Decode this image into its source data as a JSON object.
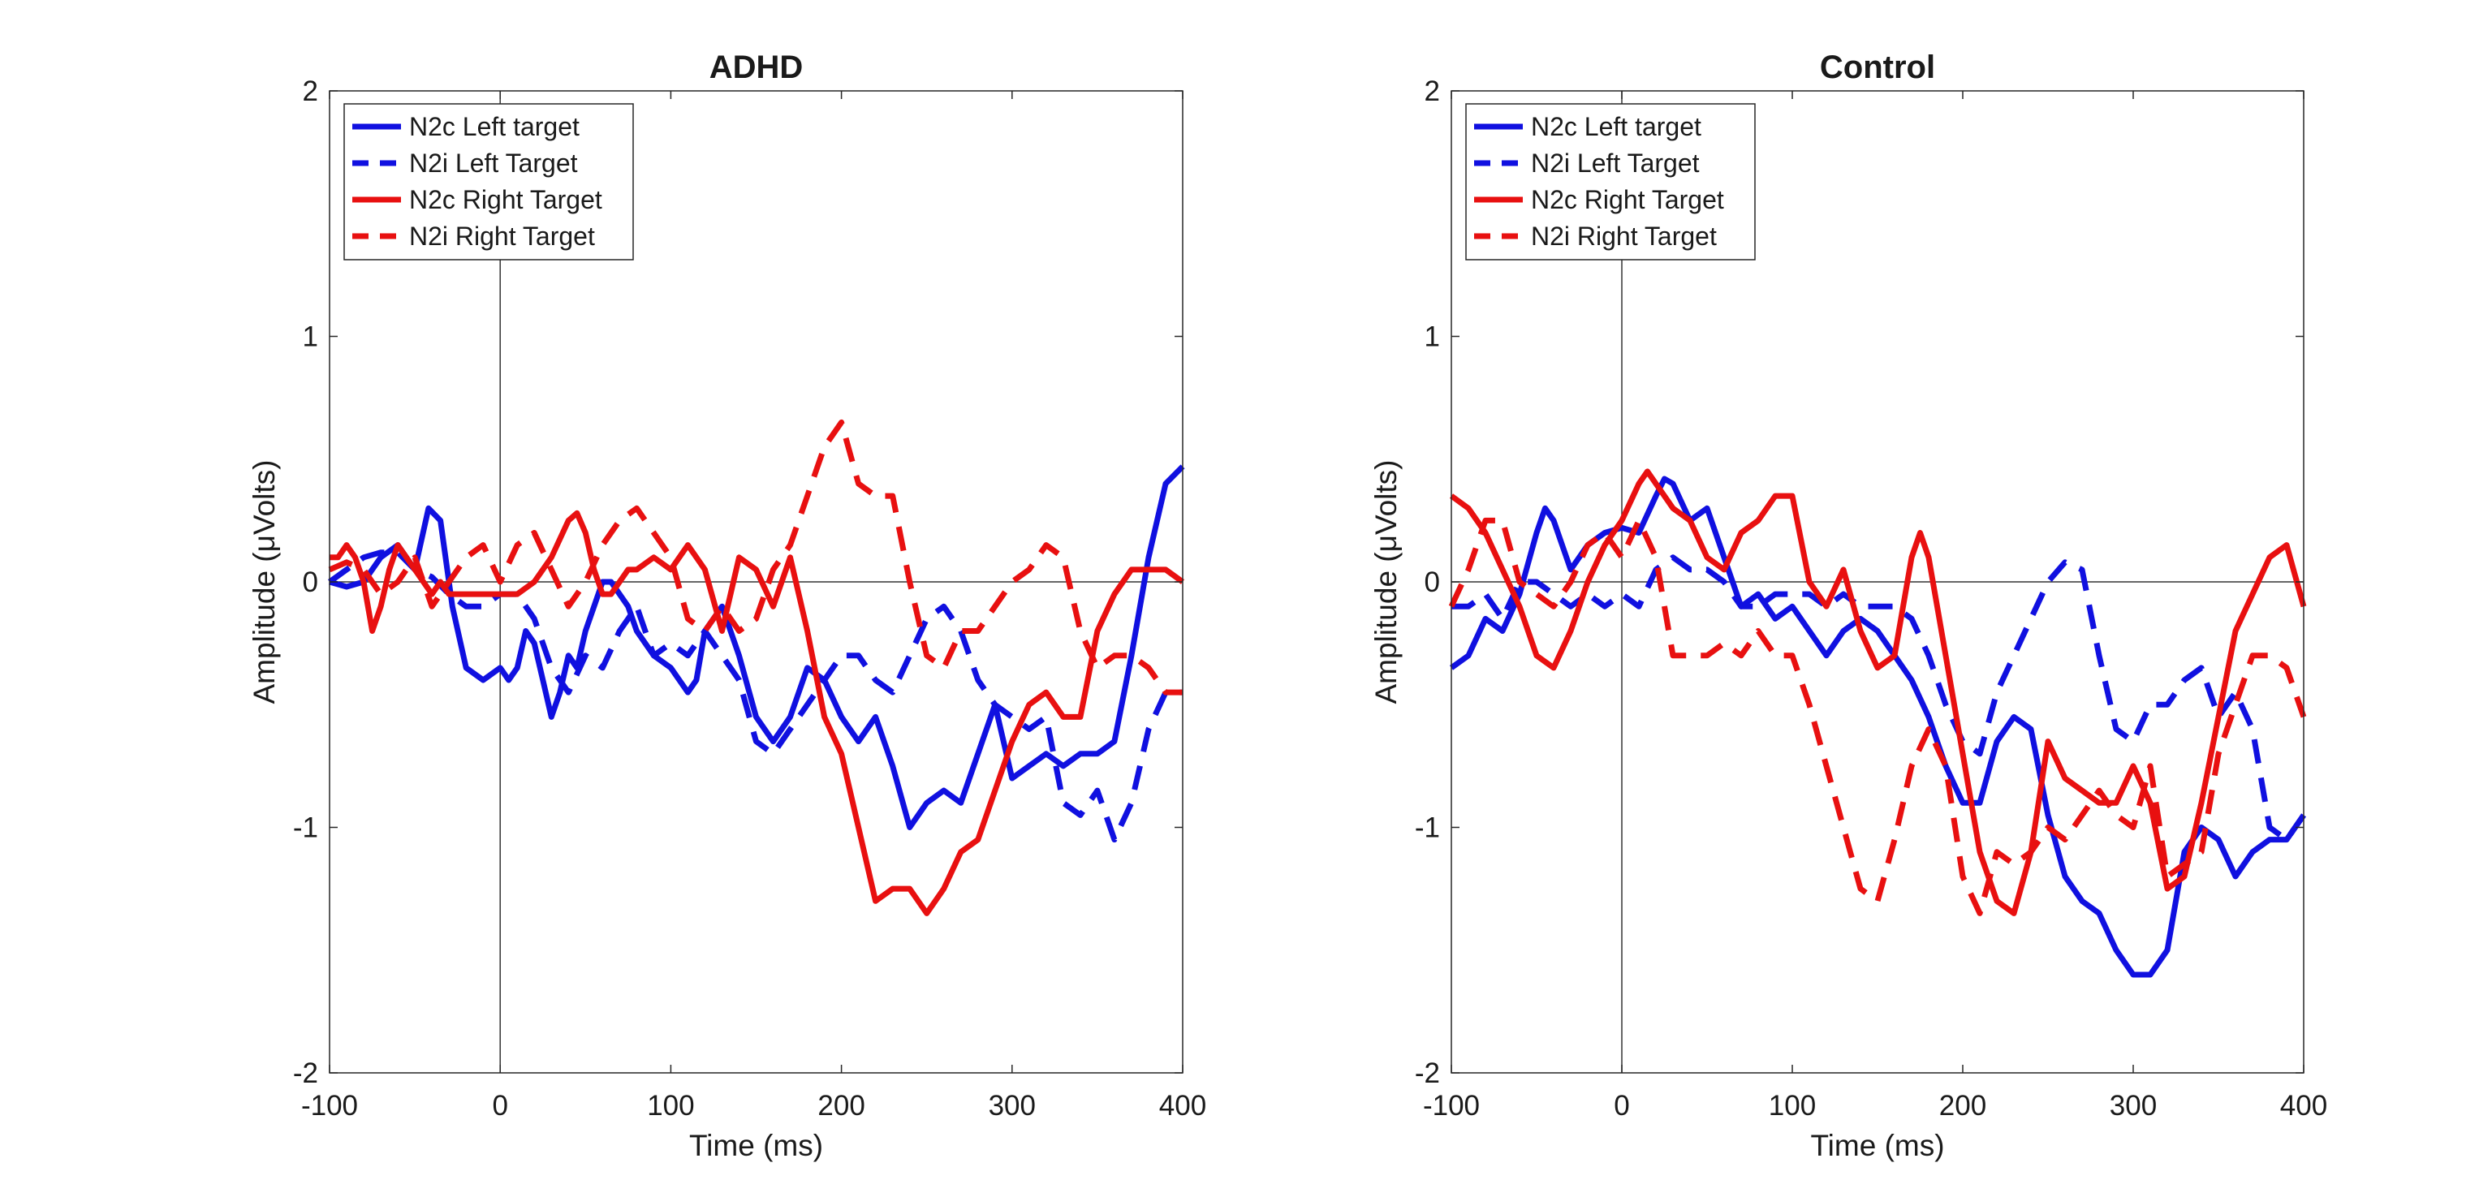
{
  "chart_data": [
    {
      "type": "line",
      "title": "ADHD",
      "xlabel": "Time (ms)",
      "ylabel": "Amplitude (μVolts)",
      "xlim": [
        -100,
        400
      ],
      "ylim": [
        -2,
        2
      ],
      "xticks": [
        -100,
        0,
        100,
        200,
        300,
        400
      ],
      "yticks": [
        -2,
        -1,
        0,
        1,
        2
      ],
      "xtick_labels": [
        "-100",
        "0",
        "100",
        "200",
        "300",
        "400"
      ],
      "ytick_labels": [
        "-2",
        "-1",
        "0",
        "1",
        "2"
      ],
      "grid": false,
      "zero_lines": true,
      "legend_position": "top-left",
      "series": [
        {
          "name": "N2c Left target",
          "color": "#1010e0",
          "dash": "solid",
          "x": [
            -100,
            -90,
            -80,
            -70,
            -60,
            -50,
            -42,
            -35,
            -28,
            -20,
            -10,
            0,
            5,
            10,
            15,
            20,
            25,
            30,
            35,
            40,
            45,
            50,
            55,
            60,
            65,
            70,
            75,
            80,
            90,
            100,
            110,
            115,
            120,
            130,
            140,
            150,
            160,
            170,
            180,
            190,
            200,
            210,
            220,
            230,
            240,
            250,
            260,
            270,
            280,
            290,
            300,
            310,
            320,
            330,
            340,
            350,
            360,
            370,
            380,
            390,
            400
          ],
          "y": [
            0,
            -0.02,
            0,
            0.1,
            0.15,
            0.05,
            0.3,
            0.25,
            -0.1,
            -0.35,
            -0.4,
            -0.35,
            -0.4,
            -0.35,
            -0.2,
            -0.25,
            -0.4,
            -0.55,
            -0.45,
            -0.3,
            -0.35,
            -0.2,
            -0.1,
            0,
            0,
            -0.05,
            -0.1,
            -0.2,
            -0.3,
            -0.35,
            -0.45,
            -0.4,
            -0.2,
            -0.1,
            -0.3,
            -0.55,
            -0.65,
            -0.55,
            -0.35,
            -0.4,
            -0.55,
            -0.65,
            -0.55,
            -0.75,
            -1.0,
            -0.9,
            -0.85,
            -0.9,
            -0.7,
            -0.5,
            -0.8,
            -0.75,
            -0.7,
            -0.75,
            -0.7,
            -0.7,
            -0.65,
            -0.3,
            0.1,
            0.4,
            0.47
          ]
        },
        {
          "name": "N2i Left Target",
          "color": "#1010e0",
          "dash": "dashed",
          "x": [
            -100,
            -90,
            -80,
            -70,
            -60,
            -50,
            -40,
            -30,
            -20,
            -10,
            0,
            10,
            20,
            30,
            40,
            50,
            60,
            70,
            80,
            90,
            100,
            110,
            120,
            130,
            140,
            150,
            160,
            170,
            180,
            190,
            200,
            210,
            220,
            230,
            240,
            250,
            260,
            270,
            280,
            290,
            300,
            310,
            320,
            330,
            340,
            350,
            360,
            370,
            380,
            390,
            400
          ],
          "y": [
            0,
            0.05,
            0.1,
            0.12,
            0.12,
            0.05,
            0.02,
            -0.05,
            -0.1,
            -0.1,
            -0.05,
            -0.05,
            -0.15,
            -0.35,
            -0.45,
            -0.3,
            -0.35,
            -0.2,
            -0.1,
            -0.3,
            -0.25,
            -0.3,
            -0.2,
            -0.3,
            -0.4,
            -0.65,
            -0.7,
            -0.6,
            -0.5,
            -0.4,
            -0.3,
            -0.3,
            -0.4,
            -0.45,
            -0.3,
            -0.15,
            -0.1,
            -0.2,
            -0.4,
            -0.5,
            -0.55,
            -0.6,
            -0.55,
            -0.9,
            -0.95,
            -0.85,
            -1.05,
            -0.9,
            -0.6,
            -0.45,
            -0.45
          ]
        },
        {
          "name": "N2c Right Target",
          "color": "#e81010",
          "dash": "solid",
          "x": [
            -100,
            -95,
            -90,
            -85,
            -80,
            -75,
            -70,
            -65,
            -60,
            -55,
            -50,
            -45,
            -40,
            -35,
            -30,
            -20,
            -10,
            0,
            10,
            20,
            30,
            40,
            45,
            50,
            55,
            60,
            65,
            70,
            75,
            80,
            90,
            100,
            110,
            120,
            130,
            140,
            150,
            160,
            170,
            180,
            190,
            200,
            210,
            220,
            230,
            240,
            250,
            260,
            270,
            280,
            290,
            300,
            310,
            320,
            330,
            340,
            350,
            360,
            370,
            380,
            390,
            400
          ],
          "y": [
            0.1,
            0.1,
            0.15,
            0.1,
            0,
            -0.2,
            -0.1,
            0.05,
            0.15,
            0.1,
            0.05,
            0,
            -0.05,
            0,
            -0.05,
            -0.05,
            -0.05,
            -0.05,
            -0.05,
            0,
            0.1,
            0.25,
            0.28,
            0.2,
            0.05,
            -0.05,
            -0.05,
            0,
            0.05,
            0.05,
            0.1,
            0.05,
            0.15,
            0.05,
            -0.2,
            0.1,
            0.05,
            -0.1,
            0.1,
            -0.2,
            -0.55,
            -0.7,
            -1.0,
            -1.3,
            -1.25,
            -1.25,
            -1.35,
            -1.25,
            -1.1,
            -1.05,
            -0.85,
            -0.65,
            -0.5,
            -0.45,
            -0.55,
            -0.55,
            -0.2,
            -0.05,
            0.05,
            0.05,
            0.05,
            0
          ]
        },
        {
          "name": "N2i Right Target",
          "color": "#e81010",
          "dash": "dashed",
          "x": [
            -100,
            -90,
            -80,
            -70,
            -60,
            -50,
            -40,
            -30,
            -20,
            -10,
            0,
            10,
            20,
            30,
            40,
            50,
            60,
            70,
            80,
            90,
            100,
            110,
            120,
            130,
            140,
            150,
            160,
            170,
            180,
            190,
            200,
            210,
            220,
            230,
            240,
            250,
            260,
            270,
            280,
            290,
            300,
            310,
            320,
            330,
            340,
            350,
            360,
            370,
            380,
            390,
            400
          ],
          "y": [
            0.05,
            0.08,
            0.05,
            -0.05,
            0,
            0.1,
            -0.1,
            0,
            0.1,
            0.15,
            0,
            0.15,
            0.2,
            0.05,
            -0.1,
            0,
            0.15,
            0.25,
            0.3,
            0.2,
            0.1,
            -0.15,
            -0.2,
            -0.1,
            -0.2,
            -0.15,
            0.05,
            0.15,
            0.35,
            0.55,
            0.65,
            0.4,
            0.35,
            0.35,
            0,
            -0.3,
            -0.35,
            -0.2,
            -0.2,
            -0.1,
            0,
            0.05,
            0.15,
            0.1,
            -0.2,
            -0.35,
            -0.3,
            -0.3,
            -0.35,
            -0.45,
            -0.45
          ]
        }
      ]
    },
    {
      "type": "line",
      "title": "Control",
      "xlabel": "Time (ms)",
      "ylabel": "Amplitude (μVolts)",
      "xlim": [
        -100,
        400
      ],
      "ylim": [
        -2,
        2
      ],
      "xticks": [
        -100,
        0,
        100,
        200,
        300,
        400
      ],
      "yticks": [
        -2,
        -1,
        0,
        1,
        2
      ],
      "xtick_labels": [
        "-100",
        "0",
        "100",
        "200",
        "300",
        "400"
      ],
      "ytick_labels": [
        "-2",
        "-1",
        "0",
        "1",
        "2"
      ],
      "grid": false,
      "zero_lines": true,
      "legend_position": "top-left",
      "series": [
        {
          "name": "N2c Left target",
          "color": "#1010e0",
          "dash": "solid",
          "x": [
            -100,
            -90,
            -80,
            -70,
            -60,
            -50,
            -45,
            -40,
            -30,
            -20,
            -10,
            0,
            10,
            20,
            25,
            30,
            40,
            50,
            60,
            70,
            80,
            90,
            100,
            110,
            120,
            130,
            140,
            150,
            160,
            170,
            180,
            190,
            200,
            210,
            220,
            230,
            240,
            250,
            260,
            270,
            280,
            290,
            300,
            310,
            320,
            330,
            340,
            350,
            360,
            370,
            380,
            390,
            400
          ],
          "y": [
            -0.35,
            -0.3,
            -0.15,
            -0.2,
            -0.05,
            0.2,
            0.3,
            0.25,
            0.05,
            0.15,
            0.2,
            0.22,
            0.2,
            0.35,
            0.42,
            0.4,
            0.25,
            0.3,
            0.1,
            -0.1,
            -0.05,
            -0.15,
            -0.1,
            -0.2,
            -0.3,
            -0.2,
            -0.15,
            -0.2,
            -0.3,
            -0.4,
            -0.55,
            -0.75,
            -0.9,
            -0.9,
            -0.65,
            -0.55,
            -0.6,
            -0.95,
            -1.2,
            -1.3,
            -1.35,
            -1.5,
            -1.6,
            -1.6,
            -1.5,
            -1.1,
            -1.0,
            -1.05,
            -1.2,
            -1.1,
            -1.05,
            -1.05,
            -0.95
          ]
        },
        {
          "name": "N2i Left Target",
          "color": "#1010e0",
          "dash": "dashed",
          "x": [
            -100,
            -90,
            -80,
            -70,
            -60,
            -50,
            -40,
            -30,
            -20,
            -10,
            0,
            10,
            20,
            30,
            40,
            50,
            60,
            70,
            80,
            90,
            100,
            110,
            120,
            130,
            140,
            150,
            160,
            170,
            180,
            190,
            200,
            210,
            220,
            230,
            240,
            250,
            260,
            270,
            280,
            290,
            300,
            310,
            320,
            330,
            340,
            350,
            360,
            370,
            380,
            390,
            400
          ],
          "y": [
            -0.1,
            -0.1,
            -0.05,
            -0.15,
            0,
            0,
            -0.05,
            -0.1,
            -0.05,
            -0.1,
            -0.05,
            -0.1,
            0.05,
            0.1,
            0.05,
            0.05,
            0,
            -0.1,
            -0.1,
            -0.05,
            -0.05,
            -0.05,
            -0.1,
            -0.05,
            -0.1,
            -0.1,
            -0.1,
            -0.15,
            -0.3,
            -0.5,
            -0.65,
            -0.7,
            -0.45,
            -0.3,
            -0.15,
            0,
            0.08,
            0.05,
            -0.3,
            -0.6,
            -0.65,
            -0.5,
            -0.5,
            -0.4,
            -0.35,
            -0.55,
            -0.45,
            -0.6,
            -1.0,
            -1.05,
            -0.95
          ]
        },
        {
          "name": "N2c Right Target",
          "color": "#e81010",
          "dash": "solid",
          "x": [
            -100,
            -90,
            -80,
            -70,
            -60,
            -50,
            -40,
            -30,
            -20,
            -10,
            0,
            10,
            15,
            20,
            30,
            40,
            50,
            60,
            70,
            80,
            90,
            100,
            110,
            120,
            130,
            140,
            150,
            160,
            170,
            175,
            180,
            190,
            200,
            210,
            220,
            230,
            240,
            250,
            260,
            270,
            280,
            290,
            300,
            310,
            320,
            330,
            340,
            350,
            360,
            370,
            380,
            390,
            400
          ],
          "y": [
            0.35,
            0.3,
            0.2,
            0.05,
            -0.1,
            -0.3,
            -0.35,
            -0.2,
            0,
            0.15,
            0.25,
            0.4,
            0.45,
            0.4,
            0.3,
            0.25,
            0.1,
            0.05,
            0.2,
            0.25,
            0.35,
            0.35,
            0,
            -0.1,
            0.05,
            -0.2,
            -0.35,
            -0.3,
            0.1,
            0.2,
            0.1,
            -0.3,
            -0.7,
            -1.1,
            -1.3,
            -1.35,
            -1.1,
            -0.65,
            -0.8,
            -0.85,
            -0.9,
            -0.9,
            -0.75,
            -0.9,
            -1.25,
            -1.2,
            -0.9,
            -0.55,
            -0.2,
            -0.05,
            0.1,
            0.15,
            -0.1
          ]
        },
        {
          "name": "N2i Right Target",
          "color": "#e81010",
          "dash": "dashed",
          "x": [
            -100,
            -90,
            -80,
            -70,
            -60,
            -50,
            -40,
            -30,
            -20,
            -10,
            0,
            10,
            20,
            30,
            40,
            50,
            60,
            70,
            80,
            90,
            100,
            110,
            120,
            130,
            140,
            150,
            160,
            170,
            180,
            190,
            200,
            210,
            220,
            230,
            240,
            250,
            260,
            270,
            280,
            290,
            300,
            310,
            320,
            330,
            340,
            350,
            360,
            370,
            380,
            390,
            400
          ],
          "y": [
            -0.1,
            0.05,
            0.25,
            0.25,
            0,
            -0.05,
            -0.1,
            0,
            0.15,
            0.2,
            0.1,
            0.25,
            0.1,
            -0.3,
            -0.3,
            -0.3,
            -0.25,
            -0.3,
            -0.2,
            -0.3,
            -0.3,
            -0.5,
            -0.75,
            -1.0,
            -1.25,
            -1.3,
            -1.05,
            -0.75,
            -0.6,
            -0.75,
            -1.2,
            -1.35,
            -1.1,
            -1.15,
            -1.1,
            -1.0,
            -1.05,
            -0.95,
            -0.85,
            -0.95,
            -1.0,
            -0.75,
            -1.2,
            -1.15,
            -1.1,
            -0.7,
            -0.5,
            -0.3,
            -0.3,
            -0.35,
            -0.55
          ]
        }
      ]
    }
  ]
}
